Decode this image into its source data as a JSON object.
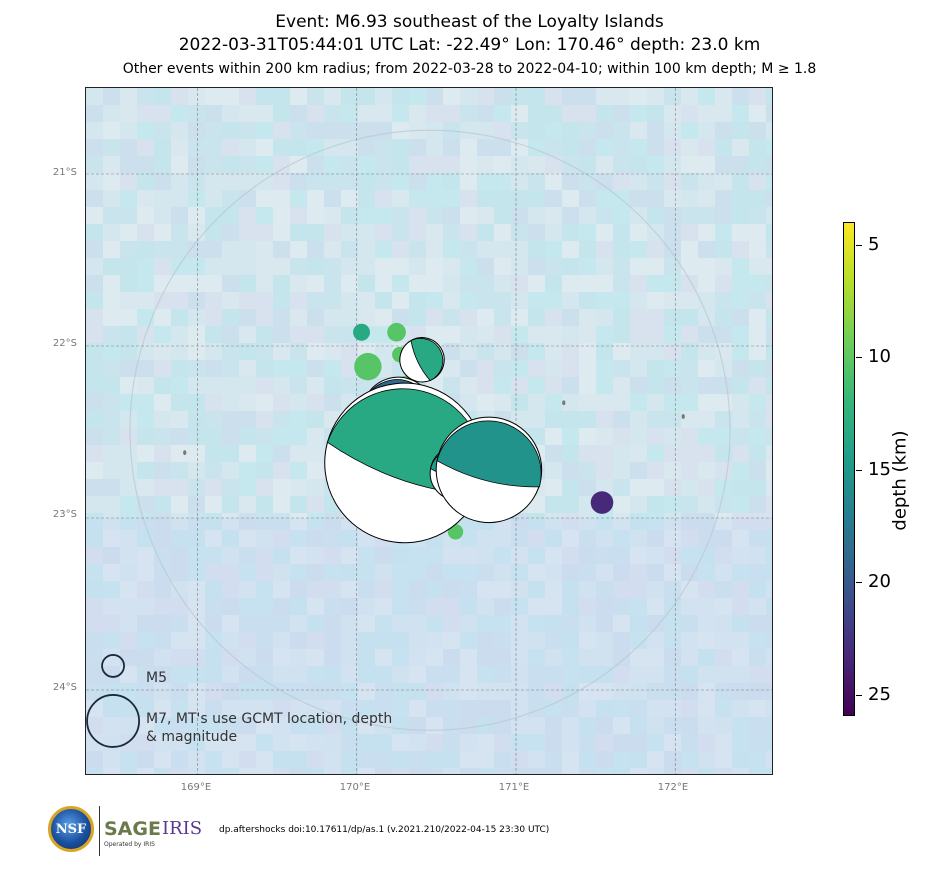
{
  "title": {
    "line1": "Event: M6.93 southeast of the Loyalty Islands",
    "line2": "2022-03-31T05:44:01 UTC Lat: -22.49° Lon: 170.46° depth: 23.0 km",
    "line3": "Other events within 200 km radius; from 2022-03-28 to 2022-04-10; within 100 km depth; M ≥ 1.8"
  },
  "map": {
    "lat_labels": [
      "21°S",
      "22°S",
      "23°S",
      "24°S"
    ],
    "lon_labels": [
      "169°E",
      "170°E",
      "171°E",
      "172°E"
    ],
    "lat_range": [
      -24.5,
      -20.5
    ],
    "lon_range": [
      168.3,
      172.62
    ],
    "grid": true
  },
  "legend": {
    "m5_label": "M5",
    "m7_label": "M7, MT's use GCMT location, depth & magnitude"
  },
  "colorbar": {
    "title": "depth (km)",
    "ticks": [
      "5",
      "10",
      "15",
      "20",
      "25"
    ],
    "range": [
      4,
      26
    ],
    "colors": [
      "#fde725",
      "#6ece58",
      "#1f9e89",
      "#3e4989",
      "#440154"
    ]
  },
  "footer": {
    "citation": "dp.aftershocks doi:10.17611/dp/as.1 (v.2021.210/2022-04-15 23:30 UTC)",
    "logo_nsf": "NSF",
    "logo_sage": "SAGE",
    "logo_iris": "IRIS",
    "logo_sub": "Operated by IRIS"
  },
  "events": [
    {
      "lon": 170.03,
      "lat": -21.92,
      "depth": 13,
      "mag": 4.6
    },
    {
      "lon": 170.25,
      "lat": -21.92,
      "depth": 10,
      "mag": 4.7
    },
    {
      "lon": 170.27,
      "lat": -22.05,
      "depth": 10,
      "mag": 4.5
    },
    {
      "lon": 170.07,
      "lat": -22.12,
      "depth": 10,
      "mag": 5.1
    },
    {
      "lon": 170.3,
      "lat": -22.22,
      "depth": 10,
      "mag": 4.5
    },
    {
      "lon": 170.06,
      "lat": -22.34,
      "depth": 10,
      "mag": 4.6
    },
    {
      "lon": 170.1,
      "lat": -22.38,
      "depth": 10,
      "mag": 4.9
    },
    {
      "lon": 169.92,
      "lat": -22.47,
      "depth": 10,
      "mag": 4.6
    },
    {
      "lon": 170.02,
      "lat": -22.53,
      "depth": 10,
      "mag": 4.5
    },
    {
      "lon": 170.14,
      "lat": -22.52,
      "depth": 10,
      "mag": 4.9
    },
    {
      "lon": 170.08,
      "lat": -22.6,
      "depth": 10,
      "mag": 4.8
    },
    {
      "lon": 170.44,
      "lat": -22.47,
      "depth": 20,
      "mag": 4.9
    },
    {
      "lon": 170.68,
      "lat": -22.49,
      "depth": 10,
      "mag": 4.4
    },
    {
      "lon": 170.58,
      "lat": -22.63,
      "depth": 23,
      "mag": 5.1
    },
    {
      "lon": 170.82,
      "lat": -22.56,
      "depth": 10,
      "mag": 4.8
    },
    {
      "lon": 170.12,
      "lat": -22.72,
      "depth": 10,
      "mag": 4.8
    },
    {
      "lon": 170.1,
      "lat": -22.8,
      "depth": 10,
      "mag": 4.7
    },
    {
      "lon": 170.04,
      "lat": -22.88,
      "depth": 10,
      "mag": 4.8
    },
    {
      "lon": 170.07,
      "lat": -22.94,
      "depth": 10,
      "mag": 4.6
    },
    {
      "lon": 170.17,
      "lat": -22.9,
      "depth": 10,
      "mag": 4.7
    },
    {
      "lon": 170.53,
      "lat": -22.88,
      "depth": 10,
      "mag": 4.6
    },
    {
      "lon": 170.48,
      "lat": -22.93,
      "depth": 10,
      "mag": 4.3
    },
    {
      "lon": 170.6,
      "lat": -22.85,
      "depth": 10,
      "mag": 4.5
    },
    {
      "lon": 170.83,
      "lat": -22.88,
      "depth": 10,
      "mag": 4.4
    },
    {
      "lon": 171.1,
      "lat": -22.72,
      "depth": 10,
      "mag": 4.4
    },
    {
      "lon": 171.09,
      "lat": -22.8,
      "depth": 10,
      "mag": 4.6
    },
    {
      "lon": 170.53,
      "lat": -23.04,
      "depth": 10,
      "mag": 4.5
    },
    {
      "lon": 170.62,
      "lat": -23.08,
      "depth": 10,
      "mag": 4.5
    },
    {
      "lon": 171.54,
      "lat": -22.91,
      "depth": 24,
      "mag": 4.9
    }
  ],
  "mechanisms": [
    {
      "lon": 170.41,
      "lat": -22.08,
      "depth": 13,
      "mag": 5.6,
      "strike": 60
    },
    {
      "lon": 170.26,
      "lat": -22.39,
      "depth": 19,
      "mag": 6.1,
      "strike": 20
    },
    {
      "lon": 170.45,
      "lat": -22.5,
      "depth": 23,
      "mag": 5.8,
      "strike": 30
    },
    {
      "lon": 170.3,
      "lat": -22.68,
      "depth": 13,
      "mag": 6.93,
      "strike": 15
    },
    {
      "lon": 170.63,
      "lat": -22.74,
      "depth": 14,
      "mag": 5.8,
      "strike": 10
    },
    {
      "lon": 170.83,
      "lat": -22.72,
      "depth": 15,
      "mag": 6.5,
      "strike": 10
    }
  ]
}
